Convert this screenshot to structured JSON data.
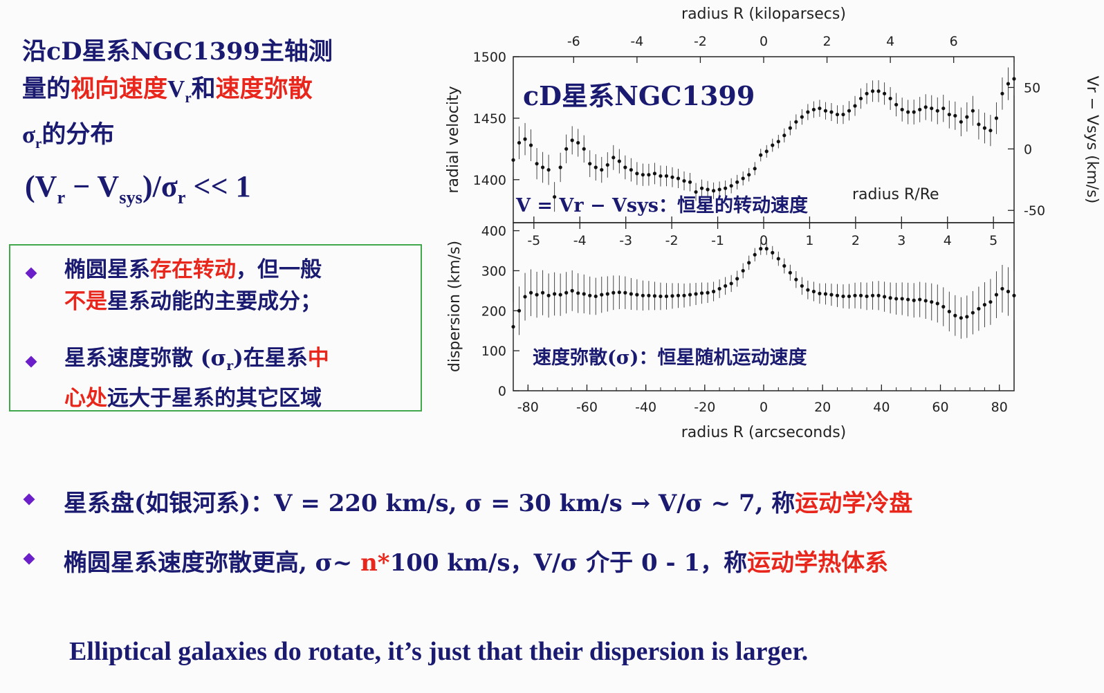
{
  "intro": {
    "line1": "沿cD星系NGC1399主轴测",
    "line2_a": "量的",
    "line2_b": "视向速度",
    "line2_c": "V",
    "line2_c_sub": "r",
    "line2_d": "和",
    "line2_e": "速度弥散",
    "line3_a": "σ",
    "line3_sub": "r",
    "line3_b": "的分布"
  },
  "formula": {
    "open": "(V",
    "sub1": "r",
    "minus": " − V",
    "sub2": "sys",
    "mid": ")/σ",
    "sub3": "r",
    "tail": " << 1"
  },
  "box": {
    "b1_a": "椭圆星系",
    "b1_b": "存在转动",
    "b1_c": "，但一般",
    "b1_d": "不是",
    "b1_e": "星系动能的主要成分；",
    "b2_a": "星系速度弥散 (σ",
    "b2_sub": "r",
    "b2_b": ")在星系",
    "b2_c": "中",
    "b2_d": "心处",
    "b2_e": "远大于星系的其它区域"
  },
  "bottom": {
    "a_text": "星系盘(如银河系)：V = 220 km/s, σ = 30 km/s → V/σ ~ 7,    称",
    "a_red": "运动学冷盘",
    "b_text1": "椭圆星系速度弥散更高, σ~ ",
    "b_red1": "n*",
    "b_text2": "100 km/s，V/σ 介于 0 - 1，称",
    "b_red2": "运动学热体系"
  },
  "closing": "Elliptical galaxies do rotate,    it’s just that their dispersion is larger.",
  "colors": {
    "navy": "#1a1a70",
    "red": "#e8261b",
    "green_border": "#3ea84a",
    "bullet": "#6a1fc8"
  },
  "chart_data": [
    {
      "type": "scatter",
      "panel": "top",
      "title": "cD星系NGC1399",
      "annotation": "V = Vr − Vsys：恒星的转动速度",
      "ylabel": "radial velocity",
      "ylabel_right": "Vr − Vsys (km/s)",
      "xlabel_top": "radius R (kiloparsecs)",
      "inner_axis_label": "radius R/Re",
      "ylim": [
        1365,
        1500
      ],
      "yticks": [
        1400,
        1450,
        1500
      ],
      "yticks_right": [
        -50,
        0,
        50
      ],
      "xticks_top_kpc": [
        -6,
        -4,
        -2,
        0,
        2,
        4,
        6
      ],
      "x": [
        -85,
        -83,
        -81,
        -79,
        -77,
        -75,
        -73,
        -71,
        -69,
        -67,
        -65,
        -63,
        -61,
        -59,
        -57,
        -55,
        -53,
        -51,
        -49,
        -47,
        -45,
        -43,
        -41,
        -39,
        -37,
        -35,
        -33,
        -31,
        -29,
        -27,
        -25,
        -23,
        -21,
        -19,
        -17,
        -15,
        -13,
        -11,
        -9,
        -7,
        -5,
        -3,
        -1,
        1,
        3,
        5,
        7,
        9,
        11,
        13,
        15,
        17,
        19,
        21,
        23,
        25,
        27,
        29,
        31,
        33,
        35,
        37,
        39,
        41,
        43,
        45,
        47,
        49,
        51,
        53,
        55,
        57,
        59,
        61,
        63,
        65,
        67,
        69,
        71,
        73,
        75,
        77,
        79,
        81,
        83,
        85
      ],
      "y": [
        1416,
        1430,
        1433,
        1428,
        1413,
        1410,
        1408,
        1386,
        1410,
        1425,
        1432,
        1430,
        1425,
        1413,
        1410,
        1408,
        1412,
        1418,
        1415,
        1410,
        1408,
        1405,
        1404,
        1404,
        1405,
        1403,
        1403,
        1402,
        1401,
        1399,
        1398,
        1390,
        1393,
        1392,
        1391,
        1392,
        1393,
        1395,
        1398,
        1401,
        1404,
        1409,
        1420,
        1423,
        1428,
        1431,
        1436,
        1442,
        1447,
        1451,
        1455,
        1457,
        1458,
        1456,
        1455,
        1453,
        1453,
        1456,
        1460,
        1466,
        1470,
        1472,
        1472,
        1470,
        1466,
        1461,
        1457,
        1455,
        1455,
        1457,
        1459,
        1458,
        1456,
        1458,
        1453,
        1452,
        1447,
        1451,
        1456,
        1445,
        1442,
        1440,
        1450,
        1470,
        1478,
        1482
      ]
    },
    {
      "type": "scatter",
      "panel": "bottom",
      "annotation": "速度弥散(σ)：恒星随机运动速度",
      "ylabel": "dispersion (km/s)",
      "xlabel": "radius R (arcseconds)",
      "xlim": [
        -85,
        85
      ],
      "ylim": [
        0,
        420
      ],
      "yticks": [
        0,
        100,
        200,
        300,
        400
      ],
      "xticks": [
        -80,
        -60,
        -40,
        -20,
        0,
        20,
        40,
        60,
        80
      ],
      "xticks_top_Re": [
        -5,
        -4,
        -3,
        -2,
        -1,
        0,
        1,
        2,
        3,
        4,
        5
      ],
      "x": [
        -85,
        -83,
        -81,
        -79,
        -77,
        -75,
        -73,
        -71,
        -69,
        -67,
        -65,
        -63,
        -61,
        -59,
        -57,
        -55,
        -53,
        -51,
        -49,
        -47,
        -45,
        -43,
        -41,
        -39,
        -37,
        -35,
        -33,
        -31,
        -29,
        -27,
        -25,
        -23,
        -21,
        -19,
        -17,
        -15,
        -13,
        -11,
        -9,
        -7,
        -5,
        -3,
        -1,
        1,
        3,
        5,
        7,
        9,
        11,
        13,
        15,
        17,
        19,
        21,
        23,
        25,
        27,
        29,
        31,
        33,
        35,
        37,
        39,
        41,
        43,
        45,
        47,
        49,
        51,
        53,
        55,
        57,
        59,
        61,
        63,
        65,
        67,
        69,
        71,
        73,
        75,
        77,
        79,
        81,
        83,
        85
      ],
      "y": [
        160,
        200,
        235,
        245,
        240,
        245,
        238,
        242,
        240,
        245,
        250,
        244,
        242,
        238,
        236,
        240,
        242,
        245,
        246,
        245,
        242,
        240,
        238,
        238,
        237,
        236,
        236,
        237,
        238,
        238,
        240,
        242,
        244,
        245,
        248,
        255,
        262,
        268,
        280,
        300,
        320,
        340,
        355,
        355,
        345,
        330,
        312,
        295,
        278,
        262,
        252,
        248,
        243,
        242,
        240,
        238,
        236,
        236,
        238,
        238,
        236,
        238,
        238,
        235,
        232,
        230,
        230,
        228,
        226,
        228,
        225,
        222,
        218,
        210,
        198,
        188,
        182,
        185,
        195,
        205,
        215,
        222,
        240,
        255,
        248,
        238
      ]
    }
  ]
}
